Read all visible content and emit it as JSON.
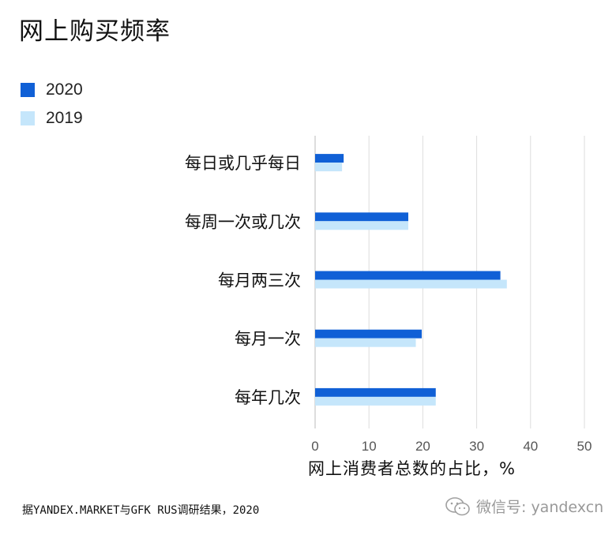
{
  "title": "网上购买频率",
  "legend": [
    {
      "label": "2020",
      "color": "#1060d6"
    },
    {
      "label": "2019",
      "color": "#c5e6fb"
    }
  ],
  "chart_data": {
    "type": "bar",
    "orientation": "horizontal",
    "title": "网上购买频率",
    "xlabel": "网上消费者总数的占比，%",
    "ylabel": "",
    "categories": [
      "每日或几乎每日",
      "每周一次或几次",
      "每月两三次",
      "每月一次",
      "每年几次"
    ],
    "series": [
      {
        "name": "2020",
        "color": "#1060d6",
        "values": [
          5.3,
          17.3,
          34.4,
          19.8,
          22.4
        ]
      },
      {
        "name": "2019",
        "color": "#c5e6fb",
        "values": [
          5.0,
          17.3,
          35.6,
          18.7,
          22.4
        ]
      }
    ],
    "xlim": [
      0,
      50
    ],
    "xticks": [
      0,
      10,
      20,
      30,
      40,
      50
    ],
    "grid": true,
    "legend_position": "top-left"
  },
  "source": "据YANDEX.MARKET与GFK RUS调研结果，2020",
  "watermark": {
    "icon": "wechat-icon",
    "text": "微信号: yandexcn"
  }
}
